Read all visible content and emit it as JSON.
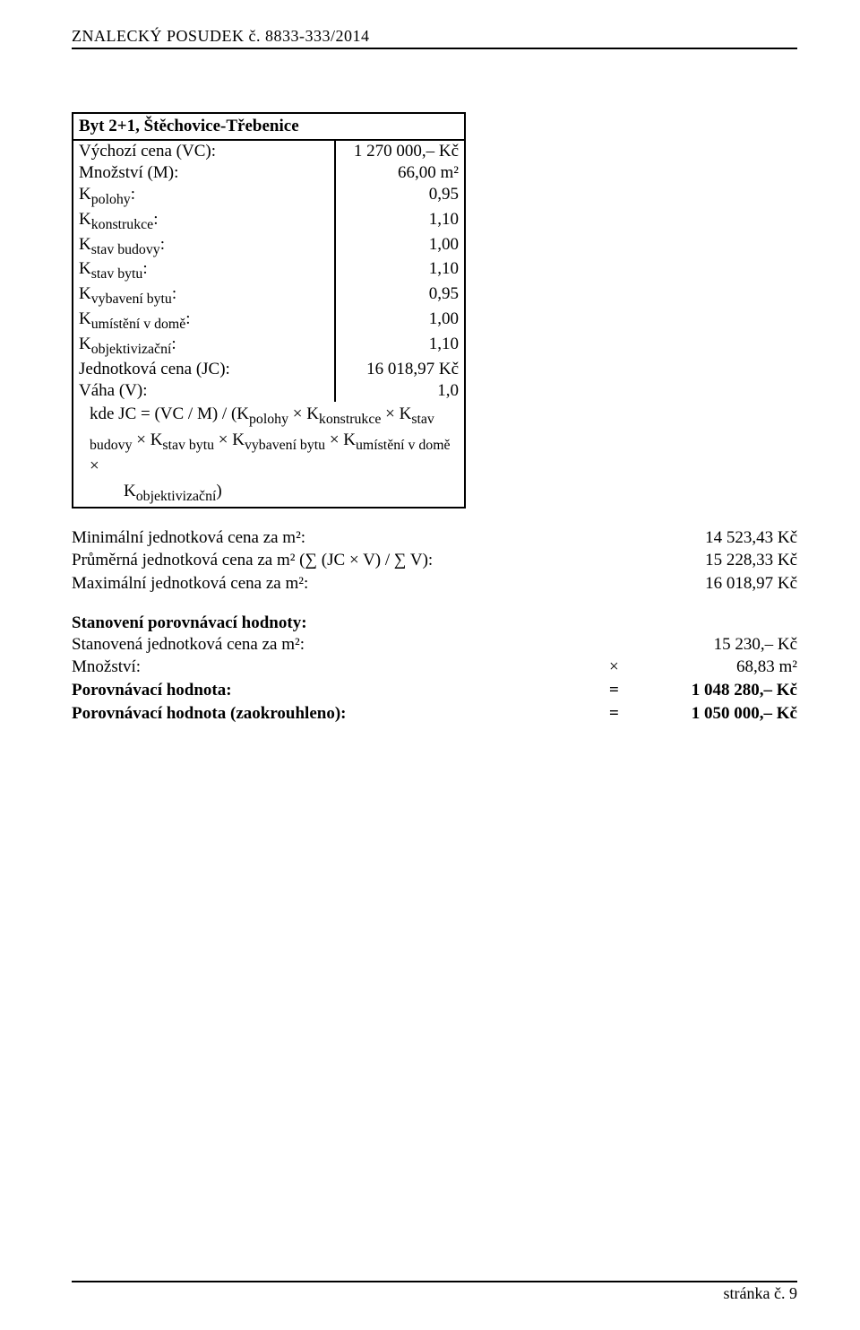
{
  "header": "ZNALECKÝ  POSUDEK č. 8833-333/2014",
  "table": {
    "title": "Byt 2+1, Štěchovice-Třebenice",
    "rows": [
      {
        "label": "Výchozí cena (VC):",
        "value": "1 270 000,– Kč"
      },
      {
        "label": "Množství (M):",
        "value": "66,00 m²"
      },
      {
        "label_html": "K<sub>polohy</sub>:",
        "value": "0,95"
      },
      {
        "label_html": "K<sub>konstrukce</sub>:",
        "value": "1,10"
      },
      {
        "label_html": "K<sub>stav budovy</sub>:",
        "value": "1,00"
      },
      {
        "label_html": "K<sub>stav bytu</sub>:",
        "value": "1,10"
      },
      {
        "label_html": "K<sub>vybavení bytu</sub>:",
        "value": "0,95"
      },
      {
        "label_html": "K<sub>umístění v domě</sub>:",
        "value": "1,00"
      },
      {
        "label_html": "K<sub>objektivizační</sub>:",
        "value": "1,10"
      },
      {
        "label": "Jednotková cena (JC):",
        "value": "16 018,97 Kč"
      },
      {
        "label": "Váha (V):",
        "value": "1,0"
      }
    ],
    "formula_line1": "kde JC = (VC / M) / (K<sub>polohy</sub> × K<sub>konstrukce</sub> × K<sub>stav budovy</sub> × K<sub>stav bytu</sub> × K<sub>vybavení bytu</sub> × K<sub>umístění v domě</sub> ×",
    "formula_line2": "K<sub>objektivizační</sub>)"
  },
  "stats": {
    "min_label": "Minimální jednotková cena za m²:",
    "min_value": "14 523,43 Kč",
    "avg_label": "Průměrná jednotková cena za m² (∑ (JC × V)   /   ∑ V):",
    "avg_value": "15 228,33 Kč",
    "max_label": "Maximální jednotková cena za m²:",
    "max_value": "16 018,97 Kč"
  },
  "result": {
    "heading": "Stanovení porovnávací hodnoty:",
    "unit_label": "Stanovená jednotková cena za m²:",
    "unit_value": "15 230,– Kč",
    "qty_label": "Množství:",
    "qty_sym": "×",
    "qty_value": "68,83 m²",
    "cmp_label": "Porovnávací hodnota:",
    "cmp_sym": "=",
    "cmp_value": "1 048 280,– Kč",
    "rnd_label": "Porovnávací hodnota (zaokrouhleno):",
    "rnd_sym": "=",
    "rnd_value": "1 050 000,– Kč"
  },
  "footer": "stránka č. 9"
}
